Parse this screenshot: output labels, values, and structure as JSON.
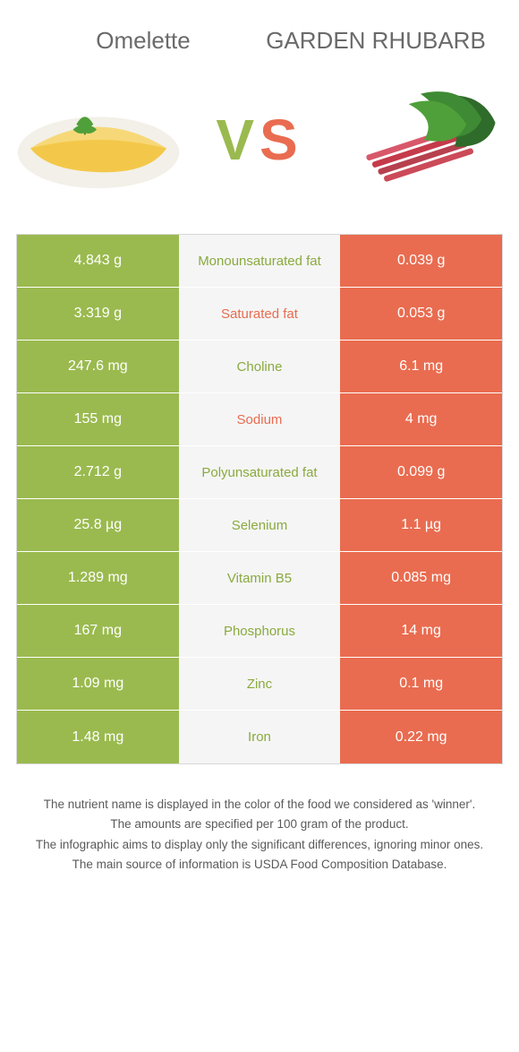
{
  "header": {
    "left_title": "Omelette",
    "right_title": "Garden rhubarb"
  },
  "vs": {
    "v": "V",
    "s": "S"
  },
  "colors": {
    "green": "#9aba4f",
    "orange": "#e96c50",
    "center_bg": "#f5f5f5",
    "border": "#d8d8d8"
  },
  "table": {
    "rows": [
      {
        "left": "4.843 g",
        "label": "Monounsaturated fat",
        "right": "0.039 g",
        "winner": "green"
      },
      {
        "left": "3.319 g",
        "label": "Saturated fat",
        "right": "0.053 g",
        "winner": "orange"
      },
      {
        "left": "247.6 mg",
        "label": "Choline",
        "right": "6.1 mg",
        "winner": "green"
      },
      {
        "left": "155 mg",
        "label": "Sodium",
        "right": "4 mg",
        "winner": "orange"
      },
      {
        "left": "2.712 g",
        "label": "Polyunsaturated fat",
        "right": "0.099 g",
        "winner": "green"
      },
      {
        "left": "25.8 µg",
        "label": "Selenium",
        "right": "1.1 µg",
        "winner": "green"
      },
      {
        "left": "1.289 mg",
        "label": "Vitamin B5",
        "right": "0.085 mg",
        "winner": "green"
      },
      {
        "left": "167 mg",
        "label": "Phosphorus",
        "right": "14 mg",
        "winner": "green"
      },
      {
        "left": "1.09 mg",
        "label": "Zinc",
        "right": "0.1 mg",
        "winner": "green"
      },
      {
        "left": "1.48 mg",
        "label": "Iron",
        "right": "0.22 mg",
        "winner": "green"
      }
    ]
  },
  "footer": {
    "line1": "The nutrient name is displayed in the color of the food we considered as 'winner'.",
    "line2": "The amounts are specified per 100 gram of the product.",
    "line3": "The infographic aims to display only the significant differences, ignoring minor ones.",
    "line4": "The main source of information is USDA Food Composition Database."
  }
}
